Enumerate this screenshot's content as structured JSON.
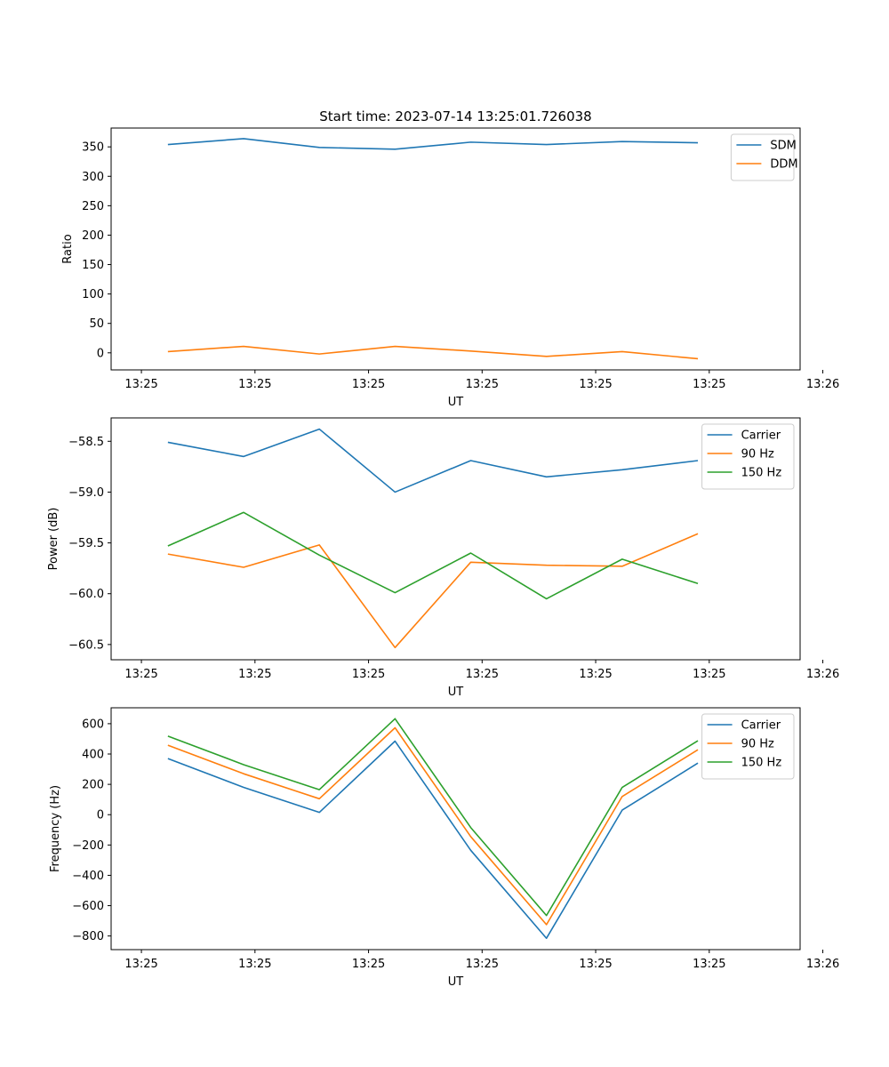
{
  "colors": {
    "blue": "#1f77b4",
    "orange": "#ff7f0e",
    "green": "#2ca02c"
  },
  "chart_data": [
    {
      "type": "line",
      "title": "Start time: 2023-07-14 13:25:01.726038",
      "xlabel": "UT",
      "ylabel": "Ratio",
      "xlim": [
        -0.4,
        8.7
      ],
      "ylim": [
        -29,
        382
      ],
      "xticks": [
        0,
        1.5,
        3,
        4.5,
        6,
        7.5,
        9
      ],
      "xtick_labels": [
        "13:25",
        "13:25",
        "13:25",
        "13:25",
        "13:25",
        "13:25",
        "13:26"
      ],
      "yticks": [
        0,
        50,
        100,
        150,
        200,
        250,
        300,
        350
      ],
      "ytick_labels": [
        "0",
        "50",
        "100",
        "150",
        "200",
        "250",
        "300",
        "350"
      ],
      "legend": "top-right",
      "x": [
        0.35,
        1.35,
        2.35,
        3.35,
        4.35,
        5.35,
        6.35,
        7.35
      ],
      "series": [
        {
          "name": "SDM",
          "color": "blue",
          "values": [
            354,
            364,
            349,
            346,
            358,
            354,
            359,
            357
          ]
        },
        {
          "name": "DDM",
          "color": "orange",
          "values": [
            2,
            11,
            -2,
            11,
            3,
            -6,
            2,
            -10
          ]
        }
      ]
    },
    {
      "type": "line",
      "title": "",
      "xlabel": "UT",
      "ylabel": "Power (dB)",
      "xlim": [
        -0.4,
        8.7
      ],
      "ylim": [
        -60.65,
        -58.27
      ],
      "xticks": [
        0,
        1.5,
        3,
        4.5,
        6,
        7.5,
        9
      ],
      "xtick_labels": [
        "13:25",
        "13:25",
        "13:25",
        "13:25",
        "13:25",
        "13:25",
        "13:26"
      ],
      "yticks": [
        -60.5,
        -60.0,
        -59.5,
        -59.0,
        -58.5
      ],
      "ytick_labels": [
        "−60.5",
        "−60.0",
        "−59.5",
        "−59.0",
        "−58.5"
      ],
      "legend": "top-right",
      "x": [
        0.35,
        1.35,
        2.35,
        3.35,
        4.35,
        5.35,
        6.35,
        7.35
      ],
      "series": [
        {
          "name": "Carrier",
          "color": "blue",
          "values": [
            -58.51,
            -58.65,
            -58.38,
            -59.0,
            -58.69,
            -58.85,
            -58.78,
            -58.69
          ]
        },
        {
          "name": "90 Hz",
          "color": "orange",
          "values": [
            -59.61,
            -59.74,
            -59.52,
            -60.53,
            -59.69,
            -59.72,
            -59.73,
            -59.41
          ]
        },
        {
          "name": "150 Hz",
          "color": "green",
          "values": [
            -59.53,
            -59.2,
            -59.62,
            -59.99,
            -59.6,
            -60.05,
            -59.66,
            -59.9
          ]
        }
      ]
    },
    {
      "type": "line",
      "title": "",
      "xlabel": "UT",
      "ylabel": "Frequency (Hz)",
      "xlim": [
        -0.4,
        8.7
      ],
      "ylim": [
        -890,
        705
      ],
      "xticks": [
        0,
        1.5,
        3,
        4.5,
        6,
        7.5,
        9
      ],
      "xtick_labels": [
        "13:25",
        "13:25",
        "13:25",
        "13:25",
        "13:25",
        "13:25",
        "13:26"
      ],
      "yticks": [
        -800,
        -600,
        -400,
        -200,
        0,
        200,
        400,
        600
      ],
      "ytick_labels": [
        "−800",
        "−600",
        "−400",
        "−200",
        "0",
        "200",
        "400",
        "600"
      ],
      "legend": "top-right",
      "x": [
        0.35,
        1.35,
        2.35,
        3.35,
        4.35,
        5.35,
        6.35,
        7.35
      ],
      "series": [
        {
          "name": "Carrier",
          "color": "blue",
          "values": [
            370,
            180,
            15,
            485,
            -235,
            -815,
            30,
            340
          ]
        },
        {
          "name": "90 Hz",
          "color": "orange",
          "values": [
            458,
            270,
            105,
            573,
            -145,
            -725,
            120,
            428
          ]
        },
        {
          "name": "150 Hz",
          "color": "green",
          "values": [
            518,
            330,
            165,
            633,
            -85,
            -665,
            180,
            488
          ]
        }
      ]
    }
  ]
}
